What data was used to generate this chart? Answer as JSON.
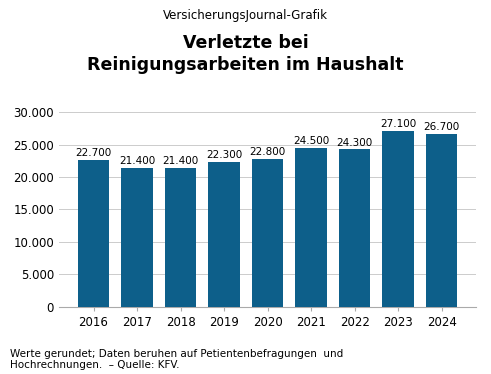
{
  "supertitle": "VersicherungsJournal-Grafik",
  "title": "Verletzte bei\nReinigungsarbeiten im Haushalt",
  "years": [
    2016,
    2017,
    2018,
    2019,
    2020,
    2021,
    2022,
    2023,
    2024
  ],
  "values": [
    22700,
    21400,
    21400,
    22300,
    22800,
    24500,
    24300,
    27100,
    26700
  ],
  "bar_color": "#0d5f8a",
  "ylim": [
    0,
    30000
  ],
  "yticks": [
    0,
    5000,
    10000,
    15000,
    20000,
    25000,
    30000
  ],
  "ytick_labels": [
    "0",
    "5.000",
    "10.000",
    "15.000",
    "20.000",
    "25.000",
    "30.000"
  ],
  "bar_labels": [
    "22.700",
    "21.400",
    "21.400",
    "22.300",
    "22.800",
    "24.500",
    "24.300",
    "27.100",
    "26.700"
  ],
  "footnote": "Werte gerundet; Daten beruhen auf Petientenbefragungen  und\nHochrechnungen.  – Quelle: KFV.",
  "background_color": "#ffffff",
  "grid_color": "#cccccc",
  "supertitle_fontsize": 8.5,
  "title_fontsize": 12.5,
  "tick_fontsize": 8.5,
  "bar_label_fontsize": 7.5,
  "footnote_fontsize": 7.5
}
